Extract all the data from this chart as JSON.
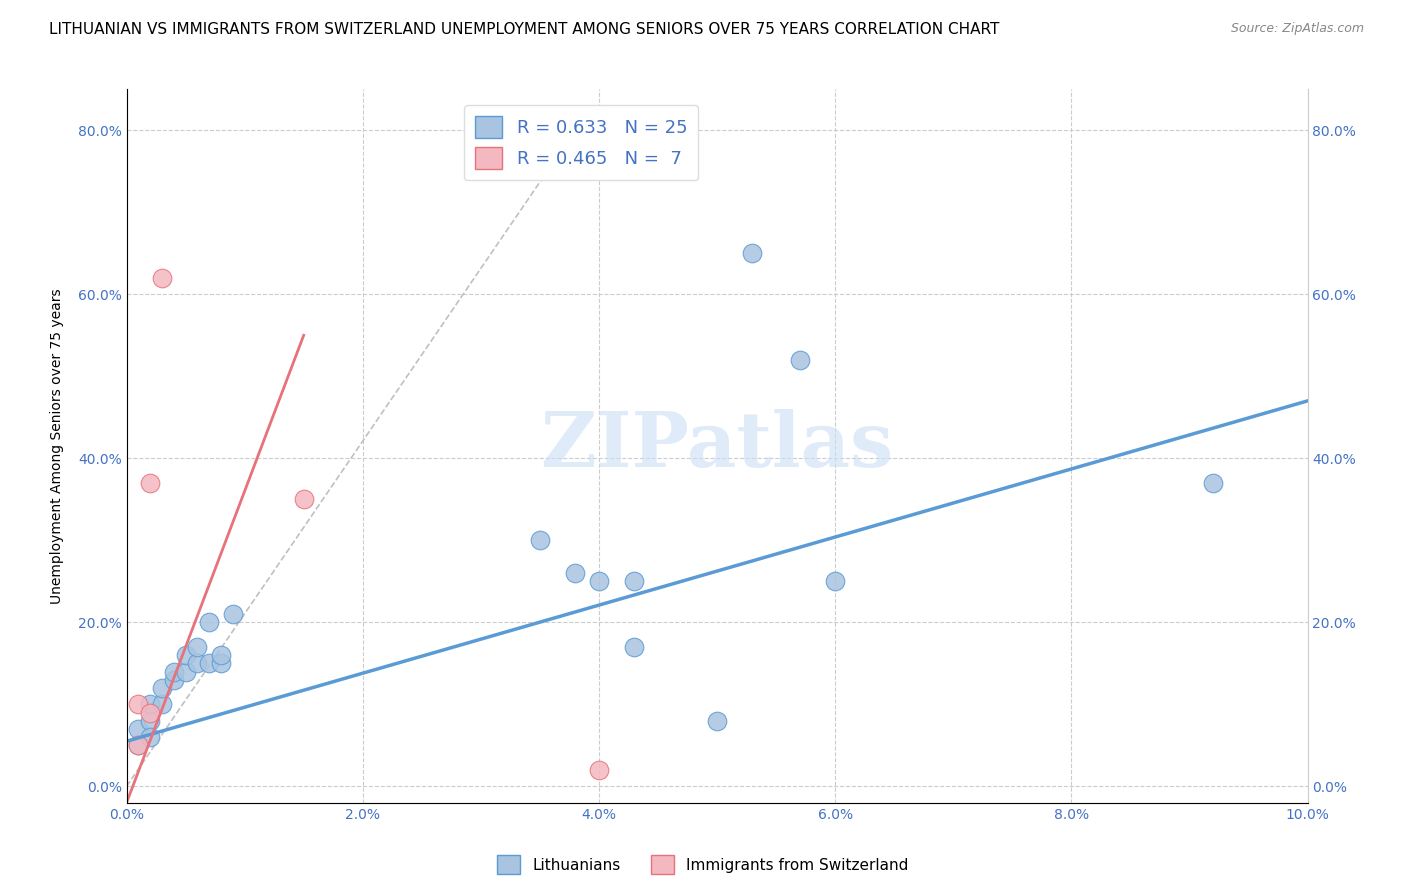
{
  "title": "LITHUANIAN VS IMMIGRANTS FROM SWITZERLAND UNEMPLOYMENT AMONG SENIORS OVER 75 YEARS CORRELATION CHART",
  "source": "Source: ZipAtlas.com",
  "ylabel_label": "Unemployment Among Seniors over 75 years",
  "xlim": [
    0.0,
    0.1
  ],
  "ylim": [
    -0.02,
    0.85
  ],
  "watermark": "ZIPatlas",
  "blue_scatter_x": [
    0.001,
    0.001,
    0.002,
    0.002,
    0.002,
    0.003,
    0.003,
    0.004,
    0.004,
    0.005,
    0.005,
    0.006,
    0.006,
    0.007,
    0.007,
    0.008,
    0.008,
    0.009,
    0.035,
    0.038,
    0.04,
    0.043,
    0.043,
    0.05,
    0.053,
    0.057,
    0.06,
    0.092
  ],
  "blue_scatter_y": [
    0.05,
    0.07,
    0.08,
    0.06,
    0.1,
    0.1,
    0.12,
    0.13,
    0.14,
    0.14,
    0.16,
    0.15,
    0.17,
    0.2,
    0.15,
    0.15,
    0.16,
    0.21,
    0.3,
    0.26,
    0.25,
    0.25,
    0.17,
    0.08,
    0.65,
    0.52,
    0.25,
    0.37
  ],
  "pink_scatter_x": [
    0.001,
    0.001,
    0.002,
    0.002,
    0.003,
    0.015,
    0.04
  ],
  "pink_scatter_y": [
    0.05,
    0.1,
    0.09,
    0.37,
    0.62,
    0.35,
    0.02
  ],
  "blue_line_x": [
    0.0,
    0.1
  ],
  "blue_line_y": [
    0.055,
    0.47
  ],
  "pink_line_x": [
    0.0,
    0.015
  ],
  "pink_line_y": [
    -0.02,
    0.55
  ],
  "diag_line_x": [
    0.0,
    0.038
  ],
  "diag_line_y": [
    0.0,
    0.8
  ],
  "blue_color": "#5b9bd5",
  "pink_color": "#e8727a",
  "blue_fill": "#a8c4e0",
  "pink_fill": "#f4b8c1",
  "scatter_size": 180,
  "xticks": [
    0.0,
    0.02,
    0.04,
    0.06,
    0.08,
    0.1
  ],
  "xtick_labels": [
    "0.0%",
    "2.0%",
    "4.0%",
    "6.0%",
    "8.0%",
    "10.0%"
  ],
  "yticks": [
    0.0,
    0.2,
    0.4,
    0.6,
    0.8
  ],
  "ytick_labels": [
    "0.0%",
    "20.0%",
    "40.0%",
    "60.0%",
    "80.0%"
  ],
  "grid_color": "#cccccc",
  "background_color": "#ffffff",
  "title_fontsize": 11,
  "tick_fontsize": 10,
  "legend_label_color": "#4472c4"
}
